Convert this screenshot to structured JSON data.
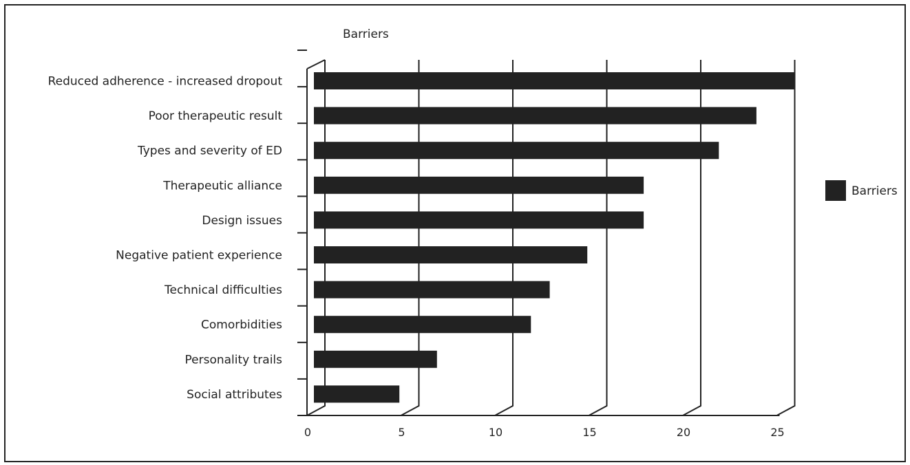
{
  "chart_data": {
    "type": "bar",
    "orientation": "horizontal",
    "title": "Barriers",
    "categories": [
      "Reduced adherence - increased dropout",
      "Poor therapeutic result",
      "Types and severity of ED",
      "Therapeutic alliance",
      "Design issues",
      "Negative patient experience",
      "Technical difficulties",
      "Comorbidities",
      "Personality trails",
      "Social attributes"
    ],
    "series": [
      {
        "name": "Barriers",
        "values": [
          25,
          23,
          21,
          17,
          17,
          14,
          12,
          11,
          6,
          4
        ],
        "color": "#222222"
      }
    ],
    "xlim": [
      0,
      25
    ],
    "xticks": [
      0,
      5,
      10,
      15,
      20,
      25
    ],
    "grid": true,
    "legend": "right",
    "style": "3d"
  }
}
